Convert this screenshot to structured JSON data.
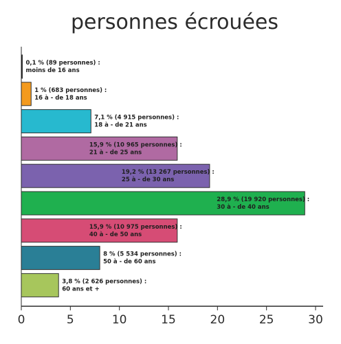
{
  "chart_data": {
    "type": "bar",
    "orientation": "horizontal",
    "title": "personnes écrouées",
    "xlim": [
      0,
      30
    ],
    "xticks": [
      "0",
      "5",
      "10",
      "15",
      "20",
      "25",
      "30"
    ],
    "grid": false,
    "bars": [
      {
        "value": 0.1,
        "pct": "0,1 % (89 personnes) :",
        "age": "moins de 16 ans",
        "color": "#1a1a1a"
      },
      {
        "value": 1,
        "pct": "1 % (683 personnes) :",
        "age": "16 à - de 18 ans",
        "color": "#f39a1e"
      },
      {
        "value": 7.1,
        "pct": "7,1 % (4 915 personnes) :",
        "age": "18 à - de 21 ans",
        "color": "#27b9cf"
      },
      {
        "value": 15.9,
        "pct": "15,9 % (10 965 personnes) :",
        "age": "21 à - de 25 ans",
        "color": "#b06aa2"
      },
      {
        "value": 19.2,
        "pct": "19,2 % (13 267 personnes) :",
        "age": "25 à - de 30 ans",
        "color": "#7b62ae"
      },
      {
        "value": 28.9,
        "pct": "28,9 % (19 920 personnes) :",
        "age": "30 à - de 40 ans",
        "color": "#1fb04f"
      },
      {
        "value": 15.9,
        "pct": "15,9 % (10 975 personnes) :",
        "age": "40 à - de 50 ans",
        "color": "#d64c75"
      },
      {
        "value": 8,
        "pct": "8 % (5 534 personnes) :",
        "age": "50 à - de 60 ans",
        "color": "#2a7f96"
      },
      {
        "value": 3.8,
        "pct": "3,8 % (2 626 personnes) :",
        "age": "60 ans et +",
        "color": "#a7c65c"
      }
    ]
  }
}
